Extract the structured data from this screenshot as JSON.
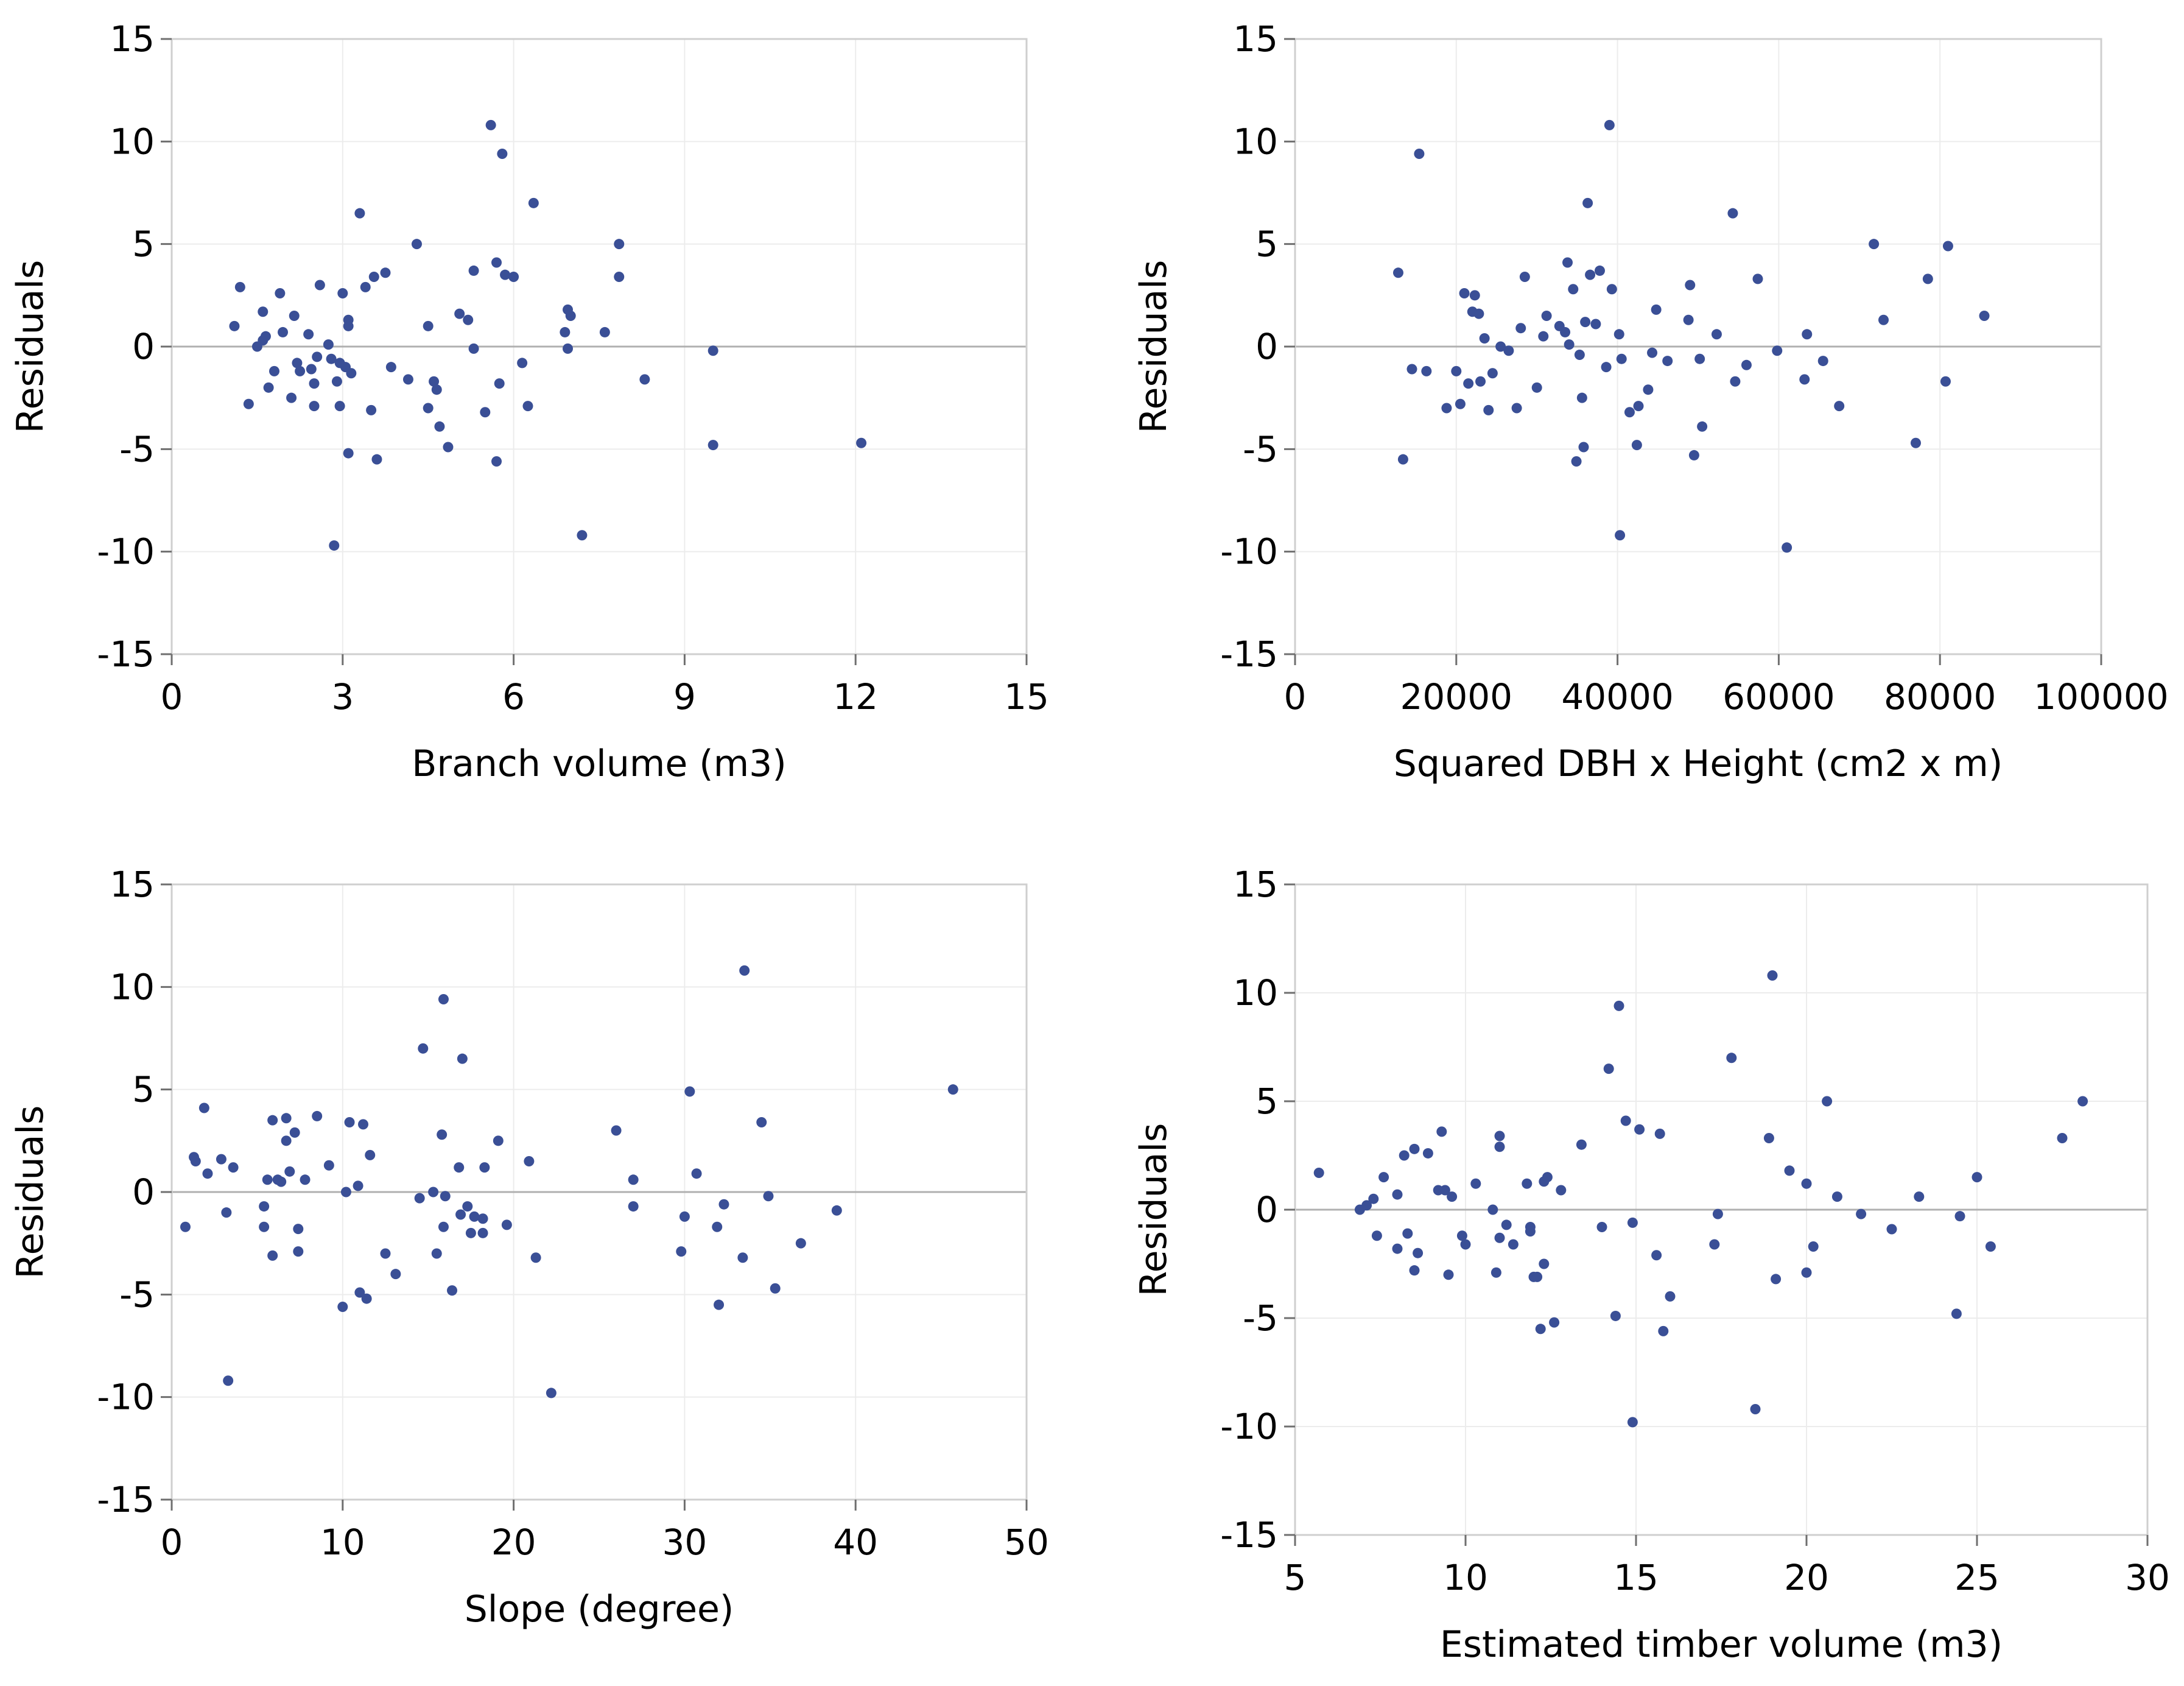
{
  "colors": {
    "point": "#3a4f96",
    "frame": "#cfcfcf",
    "grid": "#ececec",
    "zero_line": "#b0b0b0"
  },
  "chart_data": [
    {
      "type": "scatter",
      "title": "",
      "xlabel": "Branch volume (m3)",
      "ylabel": "Residuals",
      "xlim": [
        0,
        15
      ],
      "ylim": [
        -15,
        15
      ],
      "xticks": [
        0,
        3,
        6,
        9,
        12,
        15
      ],
      "yticks": [
        -15,
        -10,
        -5,
        0,
        5,
        10,
        15
      ],
      "grid": true,
      "reference_line_y": 0,
      "points": [
        [
          1.1,
          1.0
        ],
        [
          1.2,
          2.9
        ],
        [
          1.35,
          -2.8
        ],
        [
          1.5,
          0.0
        ],
        [
          1.6,
          1.7
        ],
        [
          1.6,
          0.3
        ],
        [
          1.65,
          0.5
        ],
        [
          1.7,
          -2.0
        ],
        [
          1.8,
          -1.2
        ],
        [
          1.9,
          2.6
        ],
        [
          1.95,
          0.7
        ],
        [
          2.1,
          -2.5
        ],
        [
          2.15,
          1.5
        ],
        [
          2.2,
          -0.8
        ],
        [
          2.25,
          -1.2
        ],
        [
          2.4,
          0.6
        ],
        [
          2.45,
          -1.1
        ],
        [
          2.5,
          -1.8
        ],
        [
          2.5,
          -2.9
        ],
        [
          2.55,
          -0.5
        ],
        [
          2.6,
          3.0
        ],
        [
          2.75,
          0.1
        ],
        [
          2.8,
          -0.6
        ],
        [
          2.85,
          -9.7
        ],
        [
          2.9,
          -1.7
        ],
        [
          2.95,
          -0.8
        ],
        [
          2.95,
          -2.9
        ],
        [
          3.0,
          2.6
        ],
        [
          3.05,
          -1.0
        ],
        [
          3.1,
          1.0
        ],
        [
          3.1,
          1.3
        ],
        [
          3.1,
          -5.2
        ],
        [
          3.15,
          -1.3
        ],
        [
          3.3,
          6.5
        ],
        [
          3.4,
          2.9
        ],
        [
          3.5,
          -3.1
        ],
        [
          3.55,
          3.4
        ],
        [
          3.6,
          -5.5
        ],
        [
          3.75,
          3.6
        ],
        [
          3.85,
          -1.0
        ],
        [
          4.15,
          -1.6
        ],
        [
          4.3,
          5.0
        ],
        [
          4.5,
          1.0
        ],
        [
          4.5,
          -3.0
        ],
        [
          4.6,
          -1.7
        ],
        [
          4.65,
          -2.1
        ],
        [
          4.7,
          -3.9
        ],
        [
          4.85,
          -4.9
        ],
        [
          5.05,
          1.6
        ],
        [
          5.2,
          1.3
        ],
        [
          5.3,
          3.7
        ],
        [
          5.3,
          -0.1
        ],
        [
          5.5,
          -3.2
        ],
        [
          5.6,
          10.8
        ],
        [
          5.7,
          4.1
        ],
        [
          5.7,
          -5.6
        ],
        [
          5.75,
          -1.8
        ],
        [
          5.8,
          9.4
        ],
        [
          5.85,
          3.5
        ],
        [
          6.0,
          3.4
        ],
        [
          6.15,
          -0.8
        ],
        [
          6.25,
          -2.9
        ],
        [
          6.35,
          7.0
        ],
        [
          6.9,
          0.7
        ],
        [
          6.95,
          -0.1
        ],
        [
          6.95,
          1.8
        ],
        [
          7.0,
          1.5
        ],
        [
          7.2,
          -9.2
        ],
        [
          7.6,
          0.7
        ],
        [
          7.85,
          5.0
        ],
        [
          7.85,
          3.4
        ],
        [
          8.3,
          -1.6
        ],
        [
          9.5,
          -0.2
        ],
        [
          9.5,
          -4.8
        ],
        [
          12.1,
          -4.7
        ]
      ]
    },
    {
      "type": "scatter",
      "title": "",
      "xlabel": "Squared DBH x Height (cm2 x m)",
      "ylabel": "Residuals",
      "xlim": [
        0,
        100000
      ],
      "ylim": [
        -15,
        15
      ],
      "xticks": [
        0,
        20000,
        40000,
        60000,
        80000,
        100000
      ],
      "yticks": [
        -15,
        -10,
        -5,
        0,
        5,
        10,
        15
      ],
      "grid": true,
      "reference_line_y": 0,
      "points": [
        [
          12800,
          3.6
        ],
        [
          13400,
          -5.5
        ],
        [
          14500,
          -1.1
        ],
        [
          15400,
          9.4
        ],
        [
          16300,
          -1.2
        ],
        [
          18800,
          -3.0
        ],
        [
          20000,
          -1.2
        ],
        [
          20500,
          -2.8
        ],
        [
          21000,
          2.6
        ],
        [
          21500,
          -1.8
        ],
        [
          22000,
          1.7
        ],
        [
          22300,
          2.5
        ],
        [
          22800,
          1.6
        ],
        [
          23000,
          -1.7
        ],
        [
          23500,
          0.4
        ],
        [
          24000,
          -3.1
        ],
        [
          24500,
          -1.3
        ],
        [
          25500,
          0.0
        ],
        [
          26500,
          -0.2
        ],
        [
          27500,
          -3.0
        ],
        [
          28000,
          0.9
        ],
        [
          28500,
          3.4
        ],
        [
          30000,
          -2.0
        ],
        [
          30800,
          0.5
        ],
        [
          31200,
          1.5
        ],
        [
          32800,
          1.0
        ],
        [
          33500,
          0.7
        ],
        [
          33800,
          4.1
        ],
        [
          34000,
          0.1
        ],
        [
          34500,
          2.8
        ],
        [
          34900,
          -5.6
        ],
        [
          35300,
          -0.4
        ],
        [
          35600,
          -2.5
        ],
        [
          35800,
          -4.9
        ],
        [
          36000,
          1.2
        ],
        [
          36300,
          7.0
        ],
        [
          36600,
          3.5
        ],
        [
          37300,
          1.1
        ],
        [
          37800,
          3.7
        ],
        [
          38600,
          -1.0
        ],
        [
          39000,
          10.8
        ],
        [
          39300,
          2.8
        ],
        [
          40200,
          0.6
        ],
        [
          40300,
          -9.2
        ],
        [
          40500,
          -0.6
        ],
        [
          41500,
          -3.2
        ],
        [
          42400,
          -4.8
        ],
        [
          42600,
          -2.9
        ],
        [
          43800,
          -2.1
        ],
        [
          44300,
          -0.3
        ],
        [
          44800,
          1.8
        ],
        [
          46200,
          -0.7
        ],
        [
          48800,
          1.3
        ],
        [
          49000,
          3.0
        ],
        [
          49500,
          -5.3
        ],
        [
          50200,
          -0.6
        ],
        [
          50500,
          -3.9
        ],
        [
          52300,
          0.6
        ],
        [
          54300,
          6.5
        ],
        [
          54600,
          -1.7
        ],
        [
          56000,
          -0.9
        ],
        [
          57400,
          3.3
        ],
        [
          59800,
          -0.2
        ],
        [
          61000,
          -9.8
        ],
        [
          63200,
          -1.6
        ],
        [
          63500,
          0.6
        ],
        [
          65500,
          -0.7
        ],
        [
          67500,
          -2.9
        ],
        [
          71800,
          5.0
        ],
        [
          73000,
          1.3
        ],
        [
          77000,
          -4.7
        ],
        [
          78500,
          3.3
        ],
        [
          80700,
          -1.7
        ],
        [
          81000,
          4.9
        ],
        [
          85500,
          1.5
        ]
      ]
    },
    {
      "type": "scatter",
      "title": "",
      "xlabel": "Slope (degree)",
      "ylabel": "Residuals",
      "xlim": [
        0,
        50
      ],
      "ylim": [
        -15,
        15
      ],
      "xticks": [
        0,
        10,
        20,
        30,
        40,
        50
      ],
      "yticks": [
        -15,
        -10,
        -5,
        0,
        5,
        10,
        15
      ],
      "grid": true,
      "reference_line_y": 0,
      "points": [
        [
          0.8,
          -1.7
        ],
        [
          1.3,
          1.7
        ],
        [
          1.4,
          1.5
        ],
        [
          1.9,
          4.1
        ],
        [
          2.1,
          0.9
        ],
        [
          2.9,
          1.6
        ],
        [
          3.2,
          -1.0
        ],
        [
          3.3,
          -9.2
        ],
        [
          3.6,
          1.2
        ],
        [
          5.4,
          -0.7
        ],
        [
          5.4,
          -1.7
        ],
        [
          5.6,
          0.6
        ],
        [
          5.9,
          3.5
        ],
        [
          5.9,
          -3.1
        ],
        [
          6.2,
          0.6
        ],
        [
          6.4,
          0.5
        ],
        [
          6.7,
          3.6
        ],
        [
          6.7,
          2.5
        ],
        [
          6.9,
          1.0
        ],
        [
          7.2,
          2.9
        ],
        [
          7.4,
          -2.9
        ],
        [
          7.4,
          -1.8
        ],
        [
          7.8,
          0.6
        ],
        [
          8.5,
          3.7
        ],
        [
          9.2,
          1.3
        ],
        [
          10.0,
          -5.6
        ],
        [
          10.2,
          0.0
        ],
        [
          10.4,
          3.4
        ],
        [
          10.9,
          0.3
        ],
        [
          11.0,
          -4.9
        ],
        [
          11.2,
          3.3
        ],
        [
          11.4,
          -5.2
        ],
        [
          11.6,
          1.8
        ],
        [
          12.5,
          -3.0
        ],
        [
          13.1,
          -4.0
        ],
        [
          14.5,
          -0.3
        ],
        [
          14.7,
          7.0
        ],
        [
          15.3,
          0.0
        ],
        [
          15.5,
          -3.0
        ],
        [
          15.8,
          2.8
        ],
        [
          15.9,
          -1.7
        ],
        [
          15.9,
          9.4
        ],
        [
          16.0,
          -0.2
        ],
        [
          16.4,
          -4.8
        ],
        [
          16.8,
          1.2
        ],
        [
          16.9,
          -1.1
        ],
        [
          17.0,
          6.5
        ],
        [
          17.3,
          -0.7
        ],
        [
          17.5,
          -2.0
        ],
        [
          17.7,
          -1.2
        ],
        [
          18.2,
          -2.0
        ],
        [
          18.2,
          -1.3
        ],
        [
          18.3,
          1.2
        ],
        [
          19.1,
          2.5
        ],
        [
          19.6,
          -1.6
        ],
        [
          20.9,
          1.5
        ],
        [
          21.3,
          -3.2
        ],
        [
          22.2,
          -9.8
        ],
        [
          26.0,
          3.0
        ],
        [
          27.0,
          0.6
        ],
        [
          27.0,
          -0.7
        ],
        [
          29.8,
          -2.9
        ],
        [
          30.0,
          -1.2
        ],
        [
          30.3,
          4.9
        ],
        [
          30.7,
          0.9
        ],
        [
          31.9,
          -1.7
        ],
        [
          32.0,
          -5.5
        ],
        [
          32.3,
          -0.6
        ],
        [
          33.4,
          -3.2
        ],
        [
          33.5,
          10.8
        ],
        [
          34.5,
          3.4
        ],
        [
          34.9,
          -0.2
        ],
        [
          35.3,
          -4.7
        ],
        [
          36.8,
          -2.5
        ],
        [
          38.9,
          -0.9
        ],
        [
          45.7,
          5.0
        ]
      ]
    },
    {
      "type": "scatter",
      "title": "",
      "xlabel": "Estimated timber volume (m3)",
      "ylabel": "Residuals",
      "xlim": [
        5,
        30
      ],
      "ylim": [
        -15,
        15
      ],
      "xticks": [
        5,
        10,
        15,
        20,
        25,
        30
      ],
      "yticks": [
        -15,
        -10,
        -5,
        0,
        5,
        10,
        15
      ],
      "grid": true,
      "reference_line_y": 0,
      "points": [
        [
          5.7,
          1.7
        ],
        [
          6.9,
          0.0
        ],
        [
          7.1,
          0.2
        ],
        [
          7.3,
          0.5
        ],
        [
          7.4,
          -1.2
        ],
        [
          7.6,
          1.5
        ],
        [
          8.0,
          0.7
        ],
        [
          8.0,
          -1.8
        ],
        [
          8.2,
          2.5
        ],
        [
          8.3,
          -1.1
        ],
        [
          8.5,
          2.8
        ],
        [
          8.5,
          -2.8
        ],
        [
          8.6,
          -2.0
        ],
        [
          8.9,
          2.6
        ],
        [
          9.2,
          0.9
        ],
        [
          9.3,
          3.6
        ],
        [
          9.4,
          0.9
        ],
        [
          9.5,
          -3.0
        ],
        [
          9.6,
          0.6
        ],
        [
          9.9,
          -1.2
        ],
        [
          10.0,
          -1.6
        ],
        [
          10.3,
          1.2
        ],
        [
          10.8,
          0.0
        ],
        [
          10.9,
          -2.9
        ],
        [
          11.0,
          -1.3
        ],
        [
          11.0,
          3.4
        ],
        [
          11.0,
          2.9
        ],
        [
          11.2,
          -0.7
        ],
        [
          11.4,
          -1.6
        ],
        [
          11.8,
          1.2
        ],
        [
          11.9,
          -0.8
        ],
        [
          11.9,
          -1.0
        ],
        [
          12.0,
          -3.1
        ],
        [
          12.1,
          -3.1
        ],
        [
          12.2,
          -5.5
        ],
        [
          12.3,
          1.3
        ],
        [
          12.3,
          -2.5
        ],
        [
          12.4,
          1.5
        ],
        [
          12.6,
          -5.2
        ],
        [
          12.8,
          0.9
        ],
        [
          13.4,
          3.0
        ],
        [
          14.0,
          -0.8
        ],
        [
          14.2,
          6.5
        ],
        [
          14.4,
          -4.9
        ],
        [
          14.5,
          9.4
        ],
        [
          14.7,
          4.1
        ],
        [
          14.9,
          -9.8
        ],
        [
          14.9,
          -0.6
        ],
        [
          15.1,
          3.7
        ],
        [
          15.6,
          -2.1
        ],
        [
          15.7,
          3.5
        ],
        [
          15.8,
          -5.6
        ],
        [
          16.0,
          -4.0
        ],
        [
          17.3,
          -1.6
        ],
        [
          17.4,
          -0.2
        ],
        [
          17.8,
          7.0
        ],
        [
          18.5,
          -9.2
        ],
        [
          18.9,
          3.3
        ],
        [
          19.0,
          10.8
        ],
        [
          19.1,
          -3.2
        ],
        [
          19.5,
          1.8
        ],
        [
          20.0,
          1.2
        ],
        [
          20.0,
          -2.9
        ],
        [
          20.2,
          -1.7
        ],
        [
          20.6,
          5.0
        ],
        [
          20.9,
          0.6
        ],
        [
          21.6,
          -0.2
        ],
        [
          22.5,
          -0.9
        ],
        [
          23.3,
          0.6
        ],
        [
          24.4,
          -4.8
        ],
        [
          24.5,
          -0.3
        ],
        [
          25.0,
          1.5
        ],
        [
          25.4,
          -1.7
        ],
        [
          27.5,
          3.3
        ],
        [
          28.1,
          5.0
        ]
      ]
    }
  ]
}
